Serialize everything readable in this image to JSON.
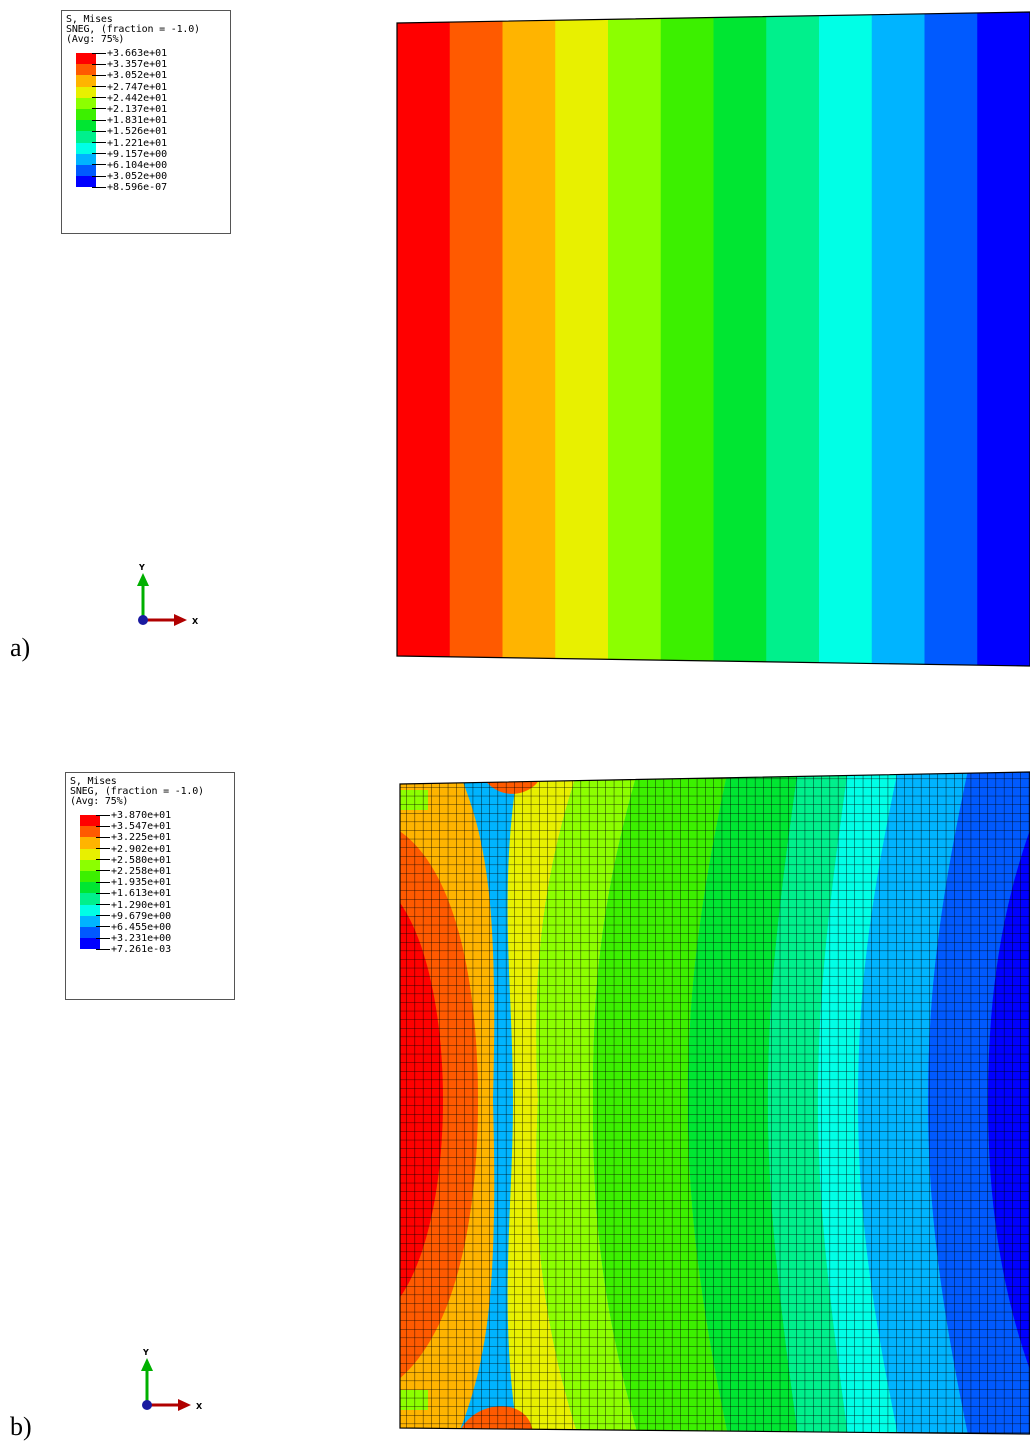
{
  "panels": [
    {
      "label": "a)",
      "legend": {
        "title_lines": [
          "S, Mises",
          "SNEG, (fraction = -1.0)",
          "(Avg: 75%)"
        ],
        "values": [
          "+3.663e+01",
          "+3.357e+01",
          "+3.052e+01",
          "+2.747e+01",
          "+2.442e+01",
          "+2.137e+01",
          "+1.831e+01",
          "+1.526e+01",
          "+1.221e+01",
          "+9.157e+00",
          "+6.104e+00",
          "+3.052e+00",
          "+8.596e-07"
        ]
      },
      "triad": {
        "y_label": "Y",
        "x_label": "X"
      }
    },
    {
      "label": "b)",
      "legend": {
        "title_lines": [
          "S, Mises",
          "SNEG, (fraction = -1.0)",
          "(Avg: 75%)"
        ],
        "values": [
          "+3.870e+01",
          "+3.547e+01",
          "+3.225e+01",
          "+2.902e+01",
          "+2.580e+01",
          "+2.258e+01",
          "+1.935e+01",
          "+1.613e+01",
          "+1.290e+01",
          "+9.679e+00",
          "+6.455e+00",
          "+3.231e+00",
          "+7.261e-03"
        ]
      },
      "triad": {
        "y_label": "Y",
        "x_label": "X"
      }
    }
  ],
  "contour_colors": [
    "#ff0000",
    "#ff5a00",
    "#ffb400",
    "#e8f000",
    "#8cff00",
    "#3cf000",
    "#00e632",
    "#00f08c",
    "#00ffe6",
    "#00b4ff",
    "#005aff",
    "#0000ff"
  ]
}
